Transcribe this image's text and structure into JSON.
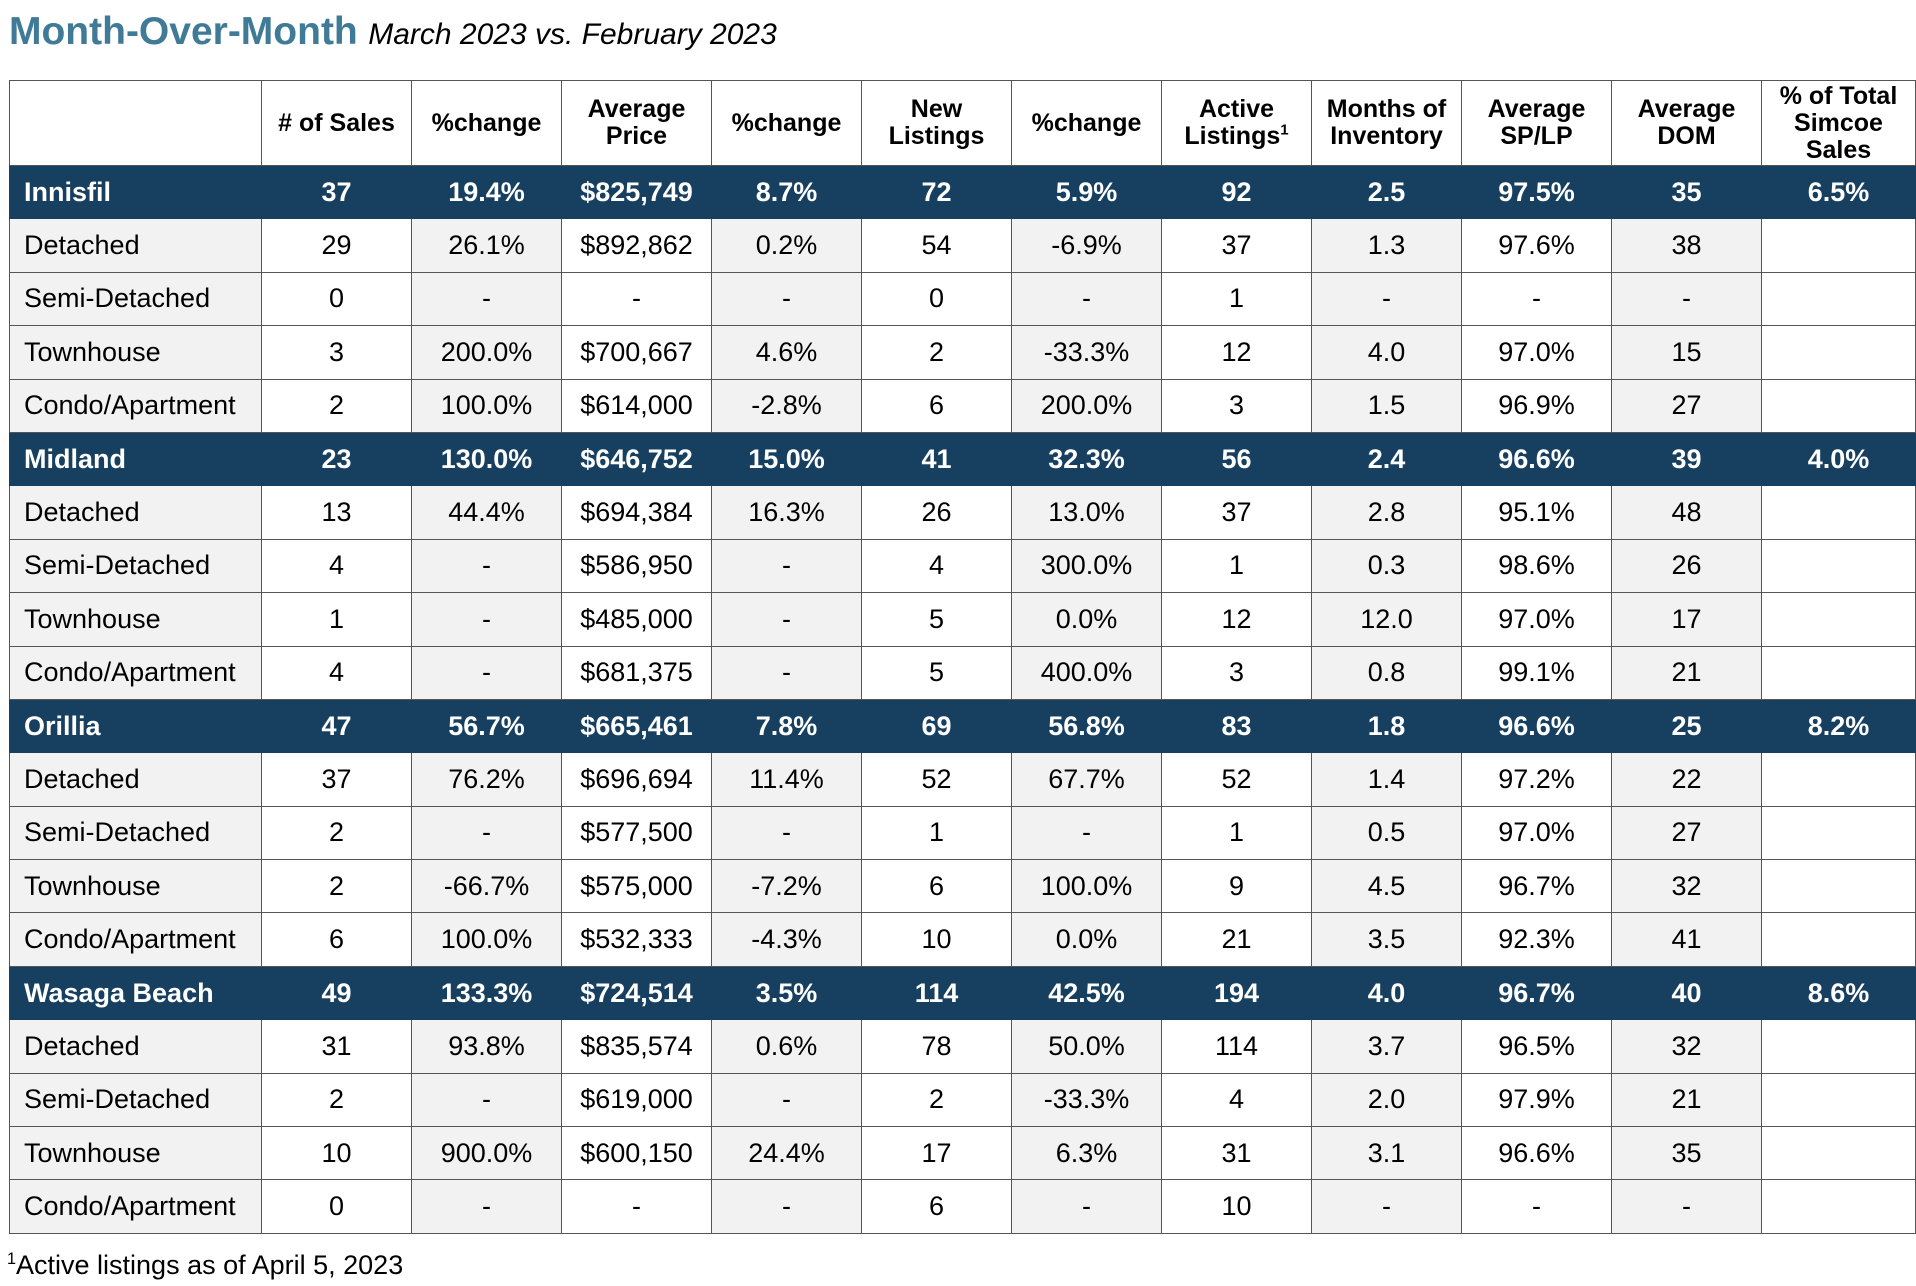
{
  "title": "Month-Over-Month",
  "subtitle": "March 2023 vs. February 2023",
  "headers": [
    {
      "text": "",
      "sup": ""
    },
    {
      "text": "# of Sales",
      "sup": ""
    },
    {
      "text": "%change",
      "sup": ""
    },
    {
      "text": "Average Price",
      "sup": ""
    },
    {
      "text": "%change",
      "sup": ""
    },
    {
      "text": "New Listings",
      "sup": ""
    },
    {
      "text": "%change",
      "sup": ""
    },
    {
      "text": "Active Listings",
      "sup": "1"
    },
    {
      "text": "Months of Inventory",
      "sup": ""
    },
    {
      "text": "Average SP/LP",
      "sup": ""
    },
    {
      "text": "Average DOM",
      "sup": ""
    },
    {
      "text": "% of Total Simcoe Sales",
      "sup": ""
    }
  ],
  "rows": [
    {
      "type": "region",
      "cells": [
        "Innisfil",
        "37",
        "19.4%",
        "$825,749",
        "8.7%",
        "72",
        "5.9%",
        "92",
        "2.5",
        "97.5%",
        "35",
        "6.5%"
      ]
    },
    {
      "type": "sub",
      "cells": [
        "Detached",
        "29",
        "26.1%",
        "$892,862",
        "0.2%",
        "54",
        "-6.9%",
        "37",
        "1.3",
        "97.6%",
        "38",
        ""
      ]
    },
    {
      "type": "sub",
      "cells": [
        "Semi-Detached",
        "0",
        "-",
        "-",
        "-",
        "0",
        "-",
        "1",
        "-",
        "-",
        "-",
        ""
      ]
    },
    {
      "type": "sub",
      "cells": [
        "Townhouse",
        "3",
        "200.0%",
        "$700,667",
        "4.6%",
        "2",
        "-33.3%",
        "12",
        "4.0",
        "97.0%",
        "15",
        ""
      ]
    },
    {
      "type": "sub",
      "cells": [
        "Condo/Apartment",
        "2",
        "100.0%",
        "$614,000",
        "-2.8%",
        "6",
        "200.0%",
        "3",
        "1.5",
        "96.9%",
        "27",
        ""
      ]
    },
    {
      "type": "region",
      "cells": [
        "Midland",
        "23",
        "130.0%",
        "$646,752",
        "15.0%",
        "41",
        "32.3%",
        "56",
        "2.4",
        "96.6%",
        "39",
        "4.0%"
      ]
    },
    {
      "type": "sub",
      "cells": [
        "Detached",
        "13",
        "44.4%",
        "$694,384",
        "16.3%",
        "26",
        "13.0%",
        "37",
        "2.8",
        "95.1%",
        "48",
        ""
      ]
    },
    {
      "type": "sub",
      "cells": [
        "Semi-Detached",
        "4",
        "-",
        "$586,950",
        "-",
        "4",
        "300.0%",
        "1",
        "0.3",
        "98.6%",
        "26",
        ""
      ]
    },
    {
      "type": "sub",
      "cells": [
        "Townhouse",
        "1",
        "-",
        "$485,000",
        "-",
        "5",
        "0.0%",
        "12",
        "12.0",
        "97.0%",
        "17",
        ""
      ]
    },
    {
      "type": "sub",
      "cells": [
        "Condo/Apartment",
        "4",
        "-",
        "$681,375",
        "-",
        "5",
        "400.0%",
        "3",
        "0.8",
        "99.1%",
        "21",
        ""
      ]
    },
    {
      "type": "region",
      "cells": [
        "Orillia",
        "47",
        "56.7%",
        "$665,461",
        "7.8%",
        "69",
        "56.8%",
        "83",
        "1.8",
        "96.6%",
        "25",
        "8.2%"
      ]
    },
    {
      "type": "sub",
      "cells": [
        "Detached",
        "37",
        "76.2%",
        "$696,694",
        "11.4%",
        "52",
        "67.7%",
        "52",
        "1.4",
        "97.2%",
        "22",
        ""
      ]
    },
    {
      "type": "sub",
      "cells": [
        "Semi-Detached",
        "2",
        "-",
        "$577,500",
        "-",
        "1",
        "-",
        "1",
        "0.5",
        "97.0%",
        "27",
        ""
      ]
    },
    {
      "type": "sub",
      "cells": [
        "Townhouse",
        "2",
        "-66.7%",
        "$575,000",
        "-7.2%",
        "6",
        "100.0%",
        "9",
        "4.5",
        "96.7%",
        "32",
        ""
      ]
    },
    {
      "type": "sub",
      "cells": [
        "Condo/Apartment",
        "6",
        "100.0%",
        "$532,333",
        "-4.3%",
        "10",
        "0.0%",
        "21",
        "3.5",
        "92.3%",
        "41",
        ""
      ]
    },
    {
      "type": "region",
      "cells": [
        "Wasaga Beach",
        "49",
        "133.3%",
        "$724,514",
        "3.5%",
        "114",
        "42.5%",
        "194",
        "4.0",
        "96.7%",
        "40",
        "8.6%"
      ]
    },
    {
      "type": "sub",
      "cells": [
        "Detached",
        "31",
        "93.8%",
        "$835,574",
        "0.6%",
        "78",
        "50.0%",
        "114",
        "3.7",
        "96.5%",
        "32",
        ""
      ]
    },
    {
      "type": "sub",
      "cells": [
        "Semi-Detached",
        "2",
        "-",
        "$619,000",
        "-",
        "2",
        "-33.3%",
        "4",
        "2.0",
        "97.9%",
        "21",
        ""
      ]
    },
    {
      "type": "sub",
      "cells": [
        "Townhouse",
        "10",
        "900.0%",
        "$600,150",
        "24.4%",
        "17",
        "6.3%",
        "31",
        "3.1",
        "96.6%",
        "35",
        ""
      ]
    },
    {
      "type": "sub",
      "cells": [
        "Condo/Apartment",
        "0",
        "-",
        "-",
        "-",
        "6",
        "-",
        "10",
        "-",
        "-",
        "-",
        ""
      ]
    }
  ],
  "footnote": {
    "sup": "1",
    "text": "Active listings as of April 5, 2023"
  },
  "colors": {
    "title": "#3f7a96",
    "region_bg": "#173f5f",
    "shade": "#f2f2f2"
  }
}
